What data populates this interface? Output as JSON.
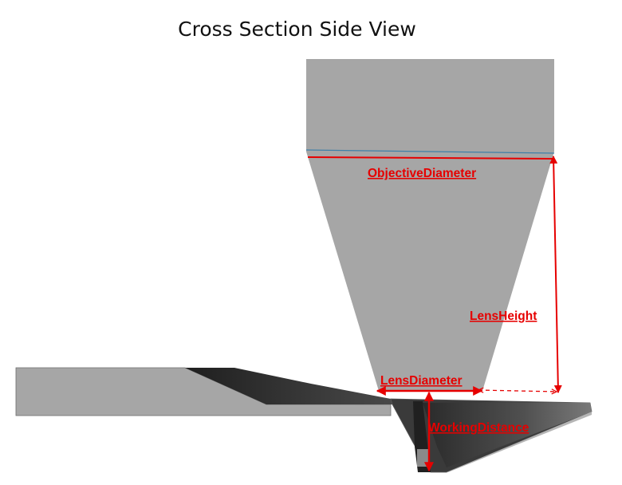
{
  "title": "Cross Section Side View",
  "labels": {
    "objective_diameter": "ObjectiveDiameter",
    "lens_height": "LensHeight",
    "lens_diameter": "LensDiameter",
    "working_distance": "WorkingDistance"
  },
  "colors": {
    "dimension": "#e60000",
    "objective_fill": "#a6a6a6",
    "reference_line": "#3e7fa8",
    "dark_surface": "#2e2e2e",
    "outline": "#555555"
  }
}
